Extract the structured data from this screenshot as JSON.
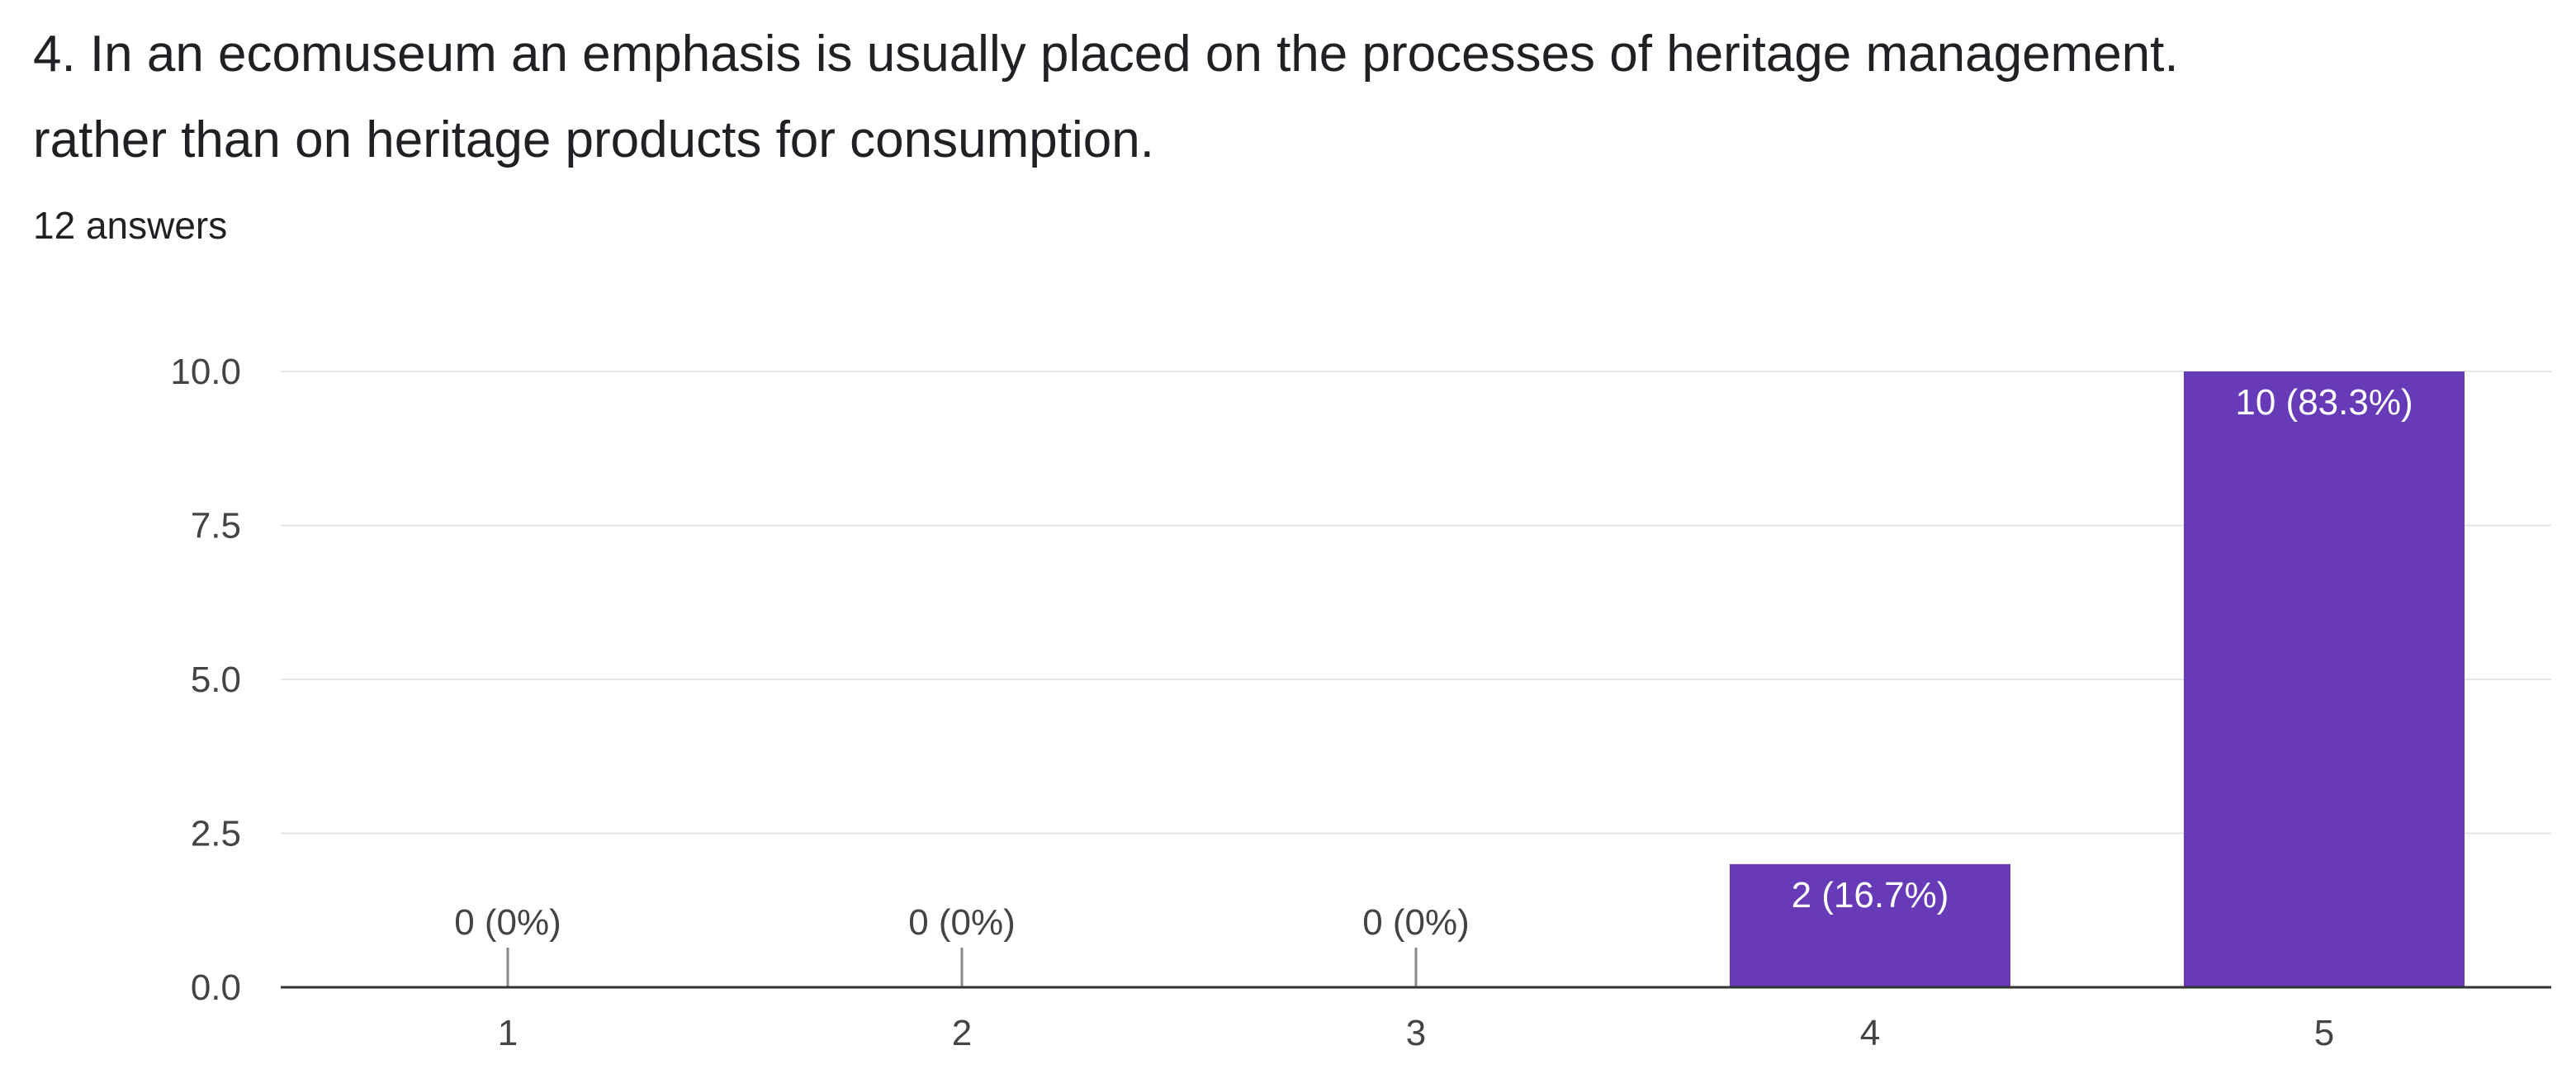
{
  "question": {
    "title": "4. In an ecomuseum an emphasis is usually placed on the processes of heritage management. rather than on heritage products for consumption.",
    "answer_count": "12 answers"
  },
  "colors": {
    "bar": "#673ab7",
    "grid": "#e6e6e6",
    "axis": "#333333",
    "label_inside": "#ffffff",
    "label_outside": "#444444"
  },
  "chart_data": {
    "type": "bar",
    "title": "",
    "xlabel": "",
    "ylabel": "",
    "categories": [
      "1",
      "2",
      "3",
      "4",
      "5"
    ],
    "values": [
      0,
      0,
      0,
      2,
      10
    ],
    "data_labels": [
      "0 (0%)",
      "0 (0%)",
      "0 (0%)",
      "2 (16.7%)",
      "10 (83.3%)"
    ],
    "ylim": [
      0,
      10
    ],
    "yticks": [
      "0.0",
      "2.5",
      "5.0",
      "7.5",
      "10.0"
    ],
    "ytick_values": [
      0,
      2.5,
      5,
      7.5,
      10
    ],
    "grid": true,
    "legend": "none"
  }
}
